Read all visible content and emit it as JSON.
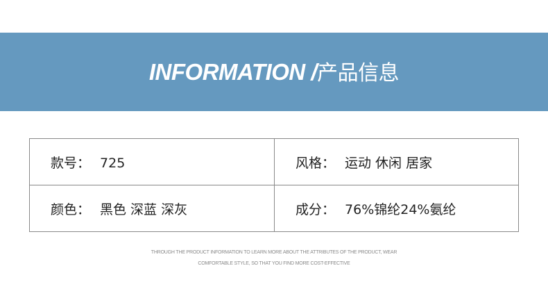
{
  "header": {
    "title_en": "INFORMATION",
    "title_sep": " /",
    "title_cn": "产品信息",
    "bg_color": "#6599bf"
  },
  "table": {
    "rows": [
      [
        {
          "label": "款号：",
          "value": "725"
        },
        {
          "label": "风格：",
          "value": "运动 休闲 居家"
        }
      ],
      [
        {
          "label": "颜色：",
          "value": "黑色 深蓝 深灰"
        },
        {
          "label": "成分：",
          "value": "76%锦纶24%氨纶"
        }
      ]
    ]
  },
  "footer": {
    "line1": "THROUGH THE PRODUCT INFORMATION TO LEARN MORE ABOUT THE ATTRIBUTES OF THE PRODUCT, WEAR",
    "line2": "COMFORTABLE STYLE, SO THAT YOU FIND MORE COST-EFFECTIVE"
  }
}
